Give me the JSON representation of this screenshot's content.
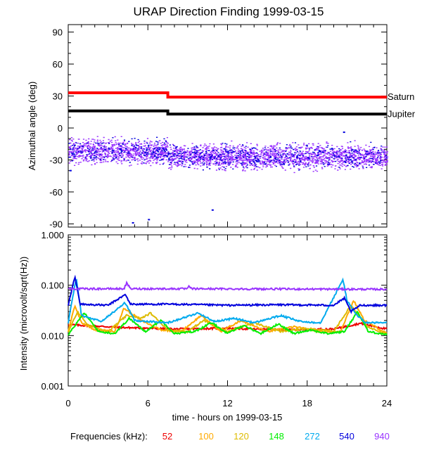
{
  "chart_data": [
    {
      "type": "line",
      "panel": "top",
      "title": "URAP Direction Finding  1999-03-15",
      "ylabel": "Azimuthal angle (deg)",
      "xlim": [
        0,
        24
      ],
      "ylim": [
        -93,
        97
      ],
      "yticks": [
        90,
        60,
        30,
        0,
        -30,
        -60,
        -90
      ],
      "ytick_labels": [
        "90",
        "60",
        "30",
        "0",
        "-30",
        "-60",
        "-90"
      ],
      "series": [
        {
          "name": "Saturn",
          "color": "#ff0000",
          "x": [
            0,
            7.5,
            7.5,
            24
          ],
          "y": [
            33,
            33,
            29,
            29
          ]
        },
        {
          "name": "Jupiter",
          "color": "#000000",
          "x": [
            0,
            7.5,
            7.5,
            24
          ],
          "y": [
            16,
            16,
            13,
            13
          ]
        }
      ],
      "scatter_band": {
        "colors": [
          "#9933ff",
          "#0000dd"
        ],
        "segments": [
          {
            "x": [
              0,
              7.5
            ],
            "center": -22,
            "spread": 8
          },
          {
            "x": [
              7.5,
              24
            ],
            "center": -27,
            "spread": 8
          }
        ]
      },
      "outliers": [
        {
          "x": 20.7,
          "y": -4
        },
        {
          "x": 0.1,
          "y": -40
        },
        {
          "x": 10.8,
          "y": -77
        },
        {
          "x": 6.0,
          "y": -86
        },
        {
          "x": 4.8,
          "y": -89
        }
      ]
    },
    {
      "type": "line",
      "panel": "bottom",
      "ylabel": "Intensity (microvolt/sqrt(Hz))",
      "xlabel": "time - hours on 1999-03-15",
      "xlim": [
        0,
        24
      ],
      "xticks": [
        0,
        6,
        12,
        18,
        24
      ],
      "xtick_labels": [
        "0",
        "6",
        "12",
        "18",
        "24"
      ],
      "yscale": "log",
      "ylim": [
        0.001,
        1.0
      ],
      "yticks": [
        1.0,
        0.1,
        0.01,
        0.001
      ],
      "ytick_labels": [
        "1.000",
        "0.100",
        "0.010",
        "0.001"
      ],
      "series": [
        {
          "name": "52",
          "color": "#ee0000",
          "x": [
            0,
            4,
            8,
            12,
            16,
            20,
            22,
            24
          ],
          "y": [
            0.0165,
            0.0145,
            0.0135,
            0.014,
            0.013,
            0.0135,
            0.0175,
            0.0135
          ]
        },
        {
          "name": "100",
          "color": "#ffaa00",
          "x": [
            0,
            0.5,
            1.0,
            2,
            3.5,
            4.2,
            5.5,
            7,
            8.5,
            10,
            11.5,
            13,
            15,
            17,
            19,
            20.5,
            21.5,
            22.3,
            24
          ],
          "y": [
            0.012,
            0.04,
            0.018,
            0.013,
            0.012,
            0.035,
            0.02,
            0.013,
            0.012,
            0.025,
            0.012,
            0.02,
            0.012,
            0.015,
            0.012,
            0.012,
            0.05,
            0.02,
            0.011
          ]
        },
        {
          "name": "120",
          "color": "#ddbb00",
          "x": [
            0,
            0.7,
            1.5,
            3,
            4.4,
            5.5,
            6.2,
            7.5,
            9,
            10.2,
            12,
            14,
            16,
            18,
            20,
            21.3,
            22.5,
            24
          ],
          "y": [
            0.0115,
            0.03,
            0.016,
            0.012,
            0.025,
            0.022,
            0.028,
            0.013,
            0.012,
            0.02,
            0.012,
            0.018,
            0.012,
            0.014,
            0.012,
            0.04,
            0.015,
            0.011
          ]
        },
        {
          "name": "148",
          "color": "#00ee00",
          "x": [
            0,
            1.2,
            2.3,
            3.5,
            4.6,
            5.8,
            7,
            8,
            9.5,
            10.8,
            12,
            13.2,
            14.5,
            15.8,
            17,
            18.2,
            19.5,
            20.8,
            21.8,
            22.6,
            24
          ],
          "y": [
            0.0105,
            0.028,
            0.012,
            0.011,
            0.022,
            0.012,
            0.02,
            0.011,
            0.012,
            0.018,
            0.011,
            0.016,
            0.011,
            0.017,
            0.011,
            0.013,
            0.011,
            0.012,
            0.03,
            0.012,
            0.0105
          ]
        },
        {
          "name": "272",
          "color": "#00aaee",
          "x": [
            0,
            0.6,
            1.0,
            2.5,
            4.3,
            5,
            7.5,
            9.8,
            11,
            12.5,
            14,
            16,
            17.5,
            19,
            20.7,
            21.0,
            21.6,
            22.4,
            24
          ],
          "y": [
            0.018,
            0.14,
            0.025,
            0.019,
            0.045,
            0.02,
            0.018,
            0.028,
            0.019,
            0.022,
            0.018,
            0.025,
            0.019,
            0.018,
            0.13,
            0.05,
            0.028,
            0.018,
            0.018
          ]
        },
        {
          "name": "540",
          "color": "#0000dd",
          "x": [
            0,
            0.5,
            0.9,
            3,
            4.3,
            4.7,
            8,
            12,
            16,
            20,
            20.8,
            21.3,
            22,
            24
          ],
          "y": [
            0.04,
            0.15,
            0.042,
            0.04,
            0.065,
            0.042,
            0.042,
            0.04,
            0.041,
            0.04,
            0.055,
            0.03,
            0.04,
            0.04
          ]
        },
        {
          "name": "940",
          "color": "#9933ff",
          "x": [
            0,
            4.2,
            4.4,
            4.7,
            9.0,
            9.1,
            9.3,
            24
          ],
          "y": [
            0.085,
            0.085,
            0.11,
            0.085,
            0.085,
            0.095,
            0.085,
            0.083
          ]
        }
      ],
      "legend": {
        "label": "Frequencies (kHz):",
        "position": "bottom",
        "entries": [
          "52",
          "100",
          "120",
          "148",
          "272",
          "540",
          "940"
        ]
      }
    }
  ]
}
